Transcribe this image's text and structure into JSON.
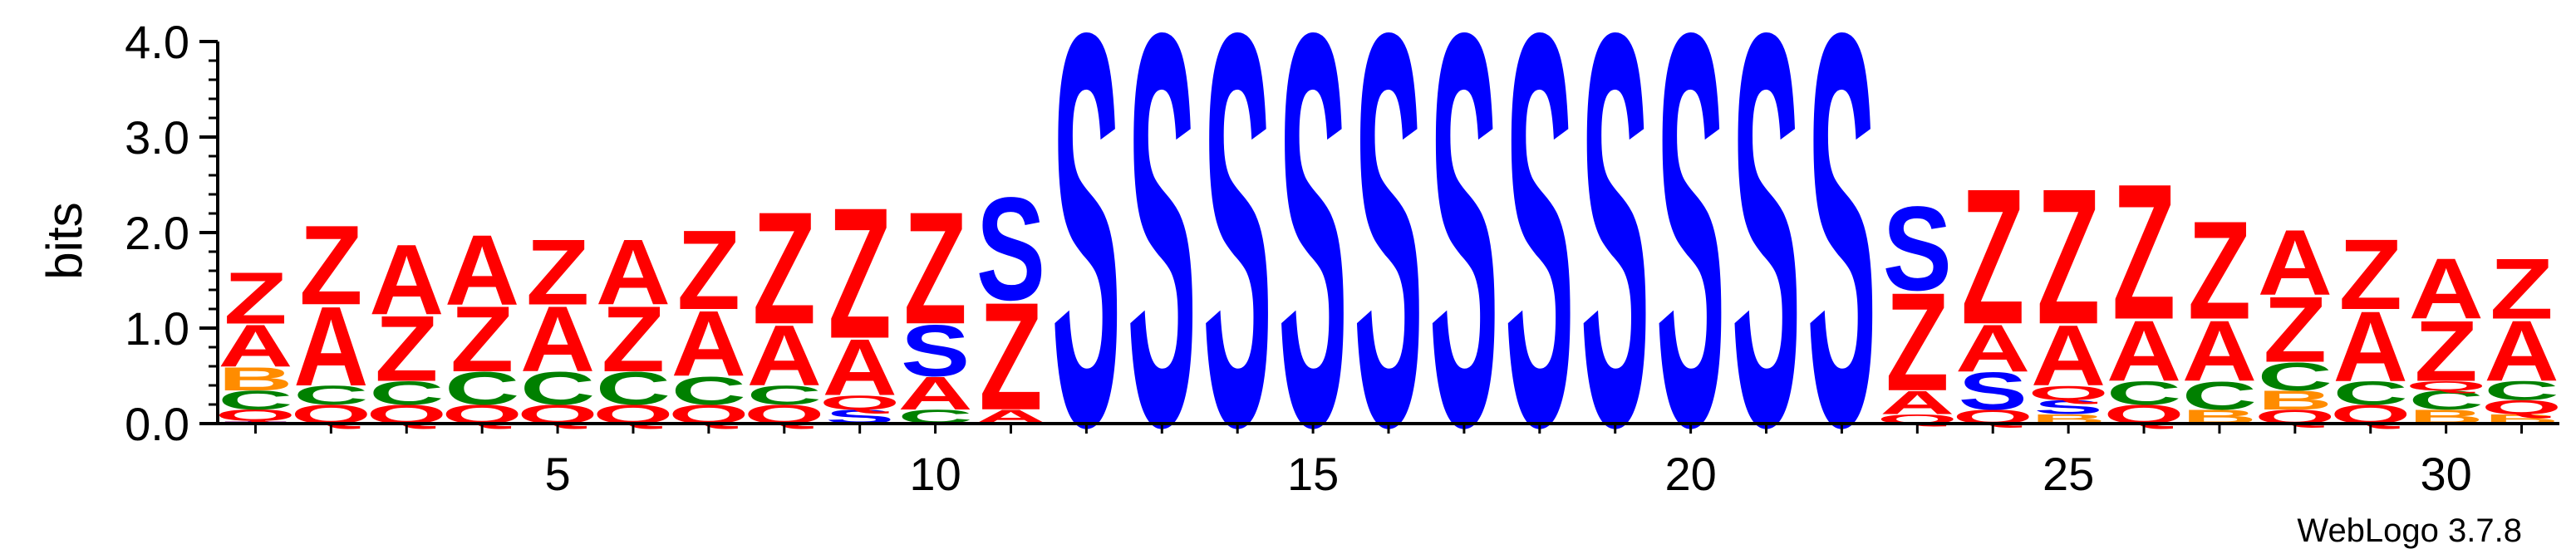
{
  "chart_data": {
    "type": "sequence_logo",
    "ylabel": "bits",
    "ylim": [
      0,
      4.0
    ],
    "y_ticks": [
      "0.0",
      "1.0",
      "2.0",
      "3.0",
      "4.0"
    ],
    "x_ticks": [
      "5",
      "10",
      "15",
      "20",
      "25",
      "30"
    ],
    "tick_positions": [
      5,
      10,
      15,
      20,
      25,
      30
    ],
    "positions": 31,
    "footer": "WebLogo 3.7.8",
    "colors": {
      "Z": "#ff0000",
      "A": "#ff0000",
      "Q": "#ff0000",
      "S": "#0000ff",
      "C": "#008000",
      "B": "#ff8c00",
      "T": "#800080"
    },
    "stacks": [
      [
        [
          "T",
          0.03
        ],
        [
          "Q",
          0.12
        ],
        [
          "C",
          0.2
        ],
        [
          "B",
          0.25
        ],
        [
          "A",
          0.45
        ],
        [
          "Z",
          0.55
        ]
      ],
      [
        [
          "Q",
          0.2
        ],
        [
          "C",
          0.2
        ],
        [
          "A",
          0.85
        ],
        [
          "Z",
          0.85
        ]
      ],
      [
        [
          "Q",
          0.2
        ],
        [
          "C",
          0.25
        ],
        [
          "Z",
          0.7
        ],
        [
          "A",
          0.75
        ]
      ],
      [
        [
          "Q",
          0.2
        ],
        [
          "C",
          0.35
        ],
        [
          "Z",
          0.7
        ],
        [
          "A",
          0.75
        ]
      ],
      [
        [
          "Q",
          0.2
        ],
        [
          "C",
          0.35
        ],
        [
          "A",
          0.7
        ],
        [
          "Z",
          0.7
        ]
      ],
      [
        [
          "Q",
          0.2
        ],
        [
          "C",
          0.35
        ],
        [
          "Z",
          0.7
        ],
        [
          "A",
          0.7
        ]
      ],
      [
        [
          "Q",
          0.2
        ],
        [
          "C",
          0.3
        ],
        [
          "A",
          0.7
        ],
        [
          "Z",
          0.85
        ]
      ],
      [
        [
          "Q",
          0.2
        ],
        [
          "C",
          0.2
        ],
        [
          "A",
          0.65
        ],
        [
          "Z",
          1.2
        ]
      ],
      [
        [
          "S",
          0.15
        ],
        [
          "Q",
          0.15
        ],
        [
          "A",
          0.6
        ],
        [
          "Z",
          1.4
        ]
      ],
      [
        [
          "C",
          0.15
        ],
        [
          "A",
          0.35
        ],
        [
          "S",
          0.55
        ],
        [
          "Z",
          1.2
        ]
      ],
      [
        [
          "A",
          0.15
        ],
        [
          "Z",
          1.15
        ],
        [
          "S",
          1.1
        ]
      ],
      [
        [
          "S",
          4.2
        ]
      ],
      [
        [
          "S",
          4.2
        ]
      ],
      [
        [
          "S",
          4.2
        ]
      ],
      [
        [
          "S",
          4.2
        ]
      ],
      [
        [
          "S",
          4.2
        ]
      ],
      [
        [
          "S",
          4.2
        ]
      ],
      [
        [
          "S",
          4.2
        ]
      ],
      [
        [
          "S",
          4.2
        ]
      ],
      [
        [
          "S",
          4.2
        ]
      ],
      [
        [
          "S",
          4.2
        ]
      ],
      [
        [
          "S",
          4.2
        ]
      ],
      [
        [
          "Q",
          0.1
        ],
        [
          "A",
          0.25
        ],
        [
          "Z",
          1.05
        ],
        [
          "S",
          0.9
        ]
      ],
      [
        [
          "Q",
          0.15
        ],
        [
          "S",
          0.4
        ],
        [
          "A",
          0.5
        ],
        [
          "Z",
          1.45
        ]
      ],
      [
        [
          "B",
          0.1
        ],
        [
          "S",
          0.15
        ],
        [
          "Q",
          0.15
        ],
        [
          "A",
          0.65
        ],
        [
          "Z",
          1.45
        ]
      ],
      [
        [
          "Q",
          0.2
        ],
        [
          "C",
          0.25
        ],
        [
          "A",
          0.65
        ],
        [
          "Z",
          1.45
        ]
      ],
      [
        [
          "B",
          0.15
        ],
        [
          "C",
          0.3
        ],
        [
          "A",
          0.65
        ],
        [
          "Z",
          1.05
        ]
      ],
      [
        [
          "Q",
          0.15
        ],
        [
          "B",
          0.2
        ],
        [
          "C",
          0.3
        ],
        [
          "Z",
          0.7
        ],
        [
          "A",
          0.7
        ]
      ],
      [
        [
          "Q",
          0.2
        ],
        [
          "C",
          0.25
        ],
        [
          "A",
          0.75
        ],
        [
          "Z",
          0.75
        ]
      ],
      [
        [
          "B",
          0.15
        ],
        [
          "C",
          0.2
        ],
        [
          "Q",
          0.1
        ],
        [
          "Z",
          0.65
        ],
        [
          "A",
          0.65
        ]
      ],
      [
        [
          "B",
          0.1
        ],
        [
          "Q",
          0.15
        ],
        [
          "C",
          0.2
        ],
        [
          "A",
          0.65
        ],
        [
          "Z",
          0.65
        ]
      ]
    ]
  }
}
